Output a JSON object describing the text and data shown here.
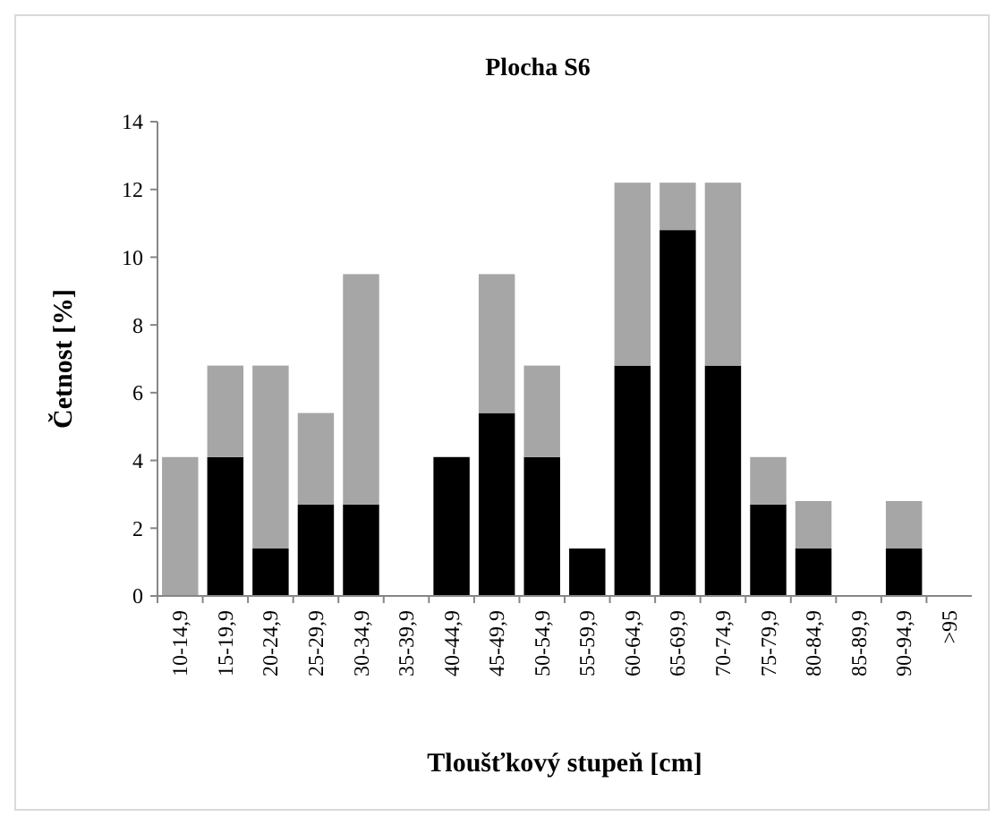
{
  "chart_data": {
    "type": "bar",
    "title": "Plocha S6",
    "xlabel": "Tloušťkový stupeň [cm]",
    "ylabel": "Četnost [%]",
    "stacked": true,
    "categories": [
      "10-14,9",
      "15-19,9",
      "20-24,9",
      "25-29,9",
      "30-34,9",
      "35-39,9",
      "40-44,9",
      "45-49,9",
      "50-54,9",
      "55-59,9",
      "60-64,9",
      "65-69,9",
      "70-74,9",
      "75-79,9",
      "80-84,9",
      "85-89,9",
      "90-94,9",
      ">95"
    ],
    "series": [
      {
        "color": "#000000",
        "values": [
          0,
          4.1,
          1.4,
          2.7,
          2.7,
          0,
          4.1,
          5.4,
          4.1,
          1.4,
          6.8,
          10.8,
          6.8,
          2.7,
          1.4,
          0,
          1.4,
          0
        ]
      },
      {
        "color": "#a6a6a6",
        "values": [
          4.1,
          2.7,
          5.4,
          2.7,
          6.8,
          0,
          0,
          4.1,
          2.7,
          0,
          5.4,
          1.4,
          5.4,
          1.4,
          1.4,
          0,
          1.4,
          0
        ]
      }
    ],
    "ylim": [
      0,
      14
    ],
    "yticks": [
      0,
      2,
      4,
      6,
      8,
      10,
      12,
      14
    ],
    "grid": false
  }
}
